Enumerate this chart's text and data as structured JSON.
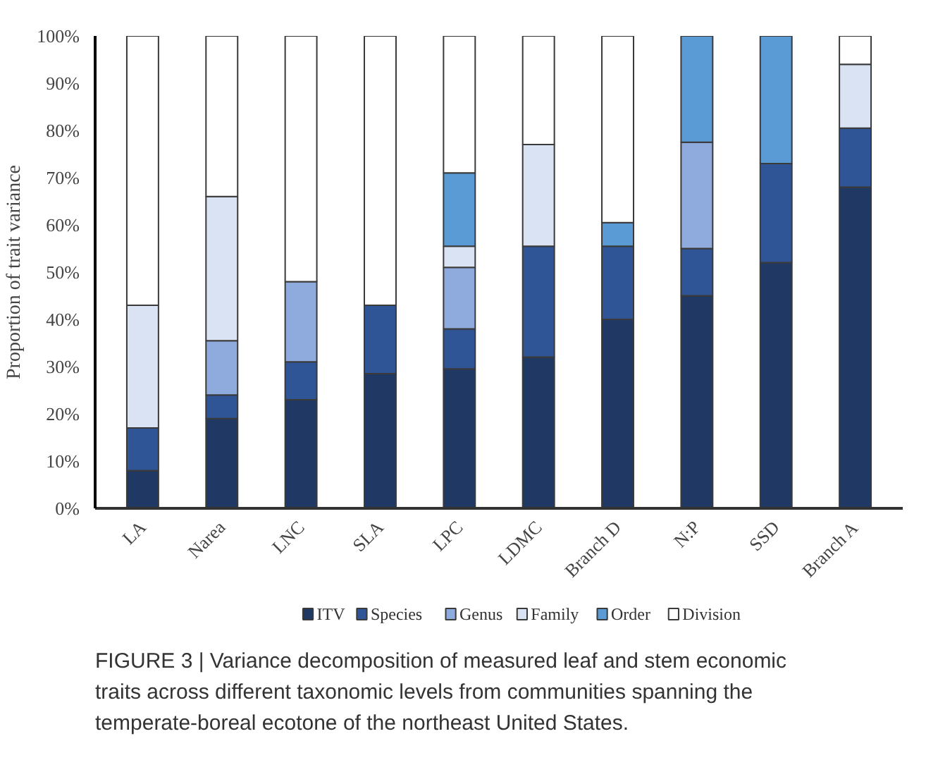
{
  "chart_data": {
    "type": "bar",
    "stacked": true,
    "ylabel": "Proportion of trait variance",
    "categories": [
      "LA",
      "Narea",
      "LNC",
      "SLA",
      "LPC",
      "LDMC",
      "Branch D",
      "N:P",
      "SSD",
      "Branch A"
    ],
    "series": [
      {
        "name": "ITV",
        "color": "#203864",
        "values": [
          8,
          19,
          23,
          28.5,
          29.5,
          32,
          40,
          45,
          52,
          68
        ]
      },
      {
        "name": "Species",
        "color": "#2f5597",
        "values": [
          9,
          5,
          8,
          14.5,
          8.5,
          23.5,
          15.5,
          10,
          21,
          12.5
        ]
      },
      {
        "name": "Genus",
        "color": "#8faadc",
        "values": [
          null,
          11.5,
          17,
          null,
          13,
          null,
          null,
          22.5,
          null,
          null
        ]
      },
      {
        "name": "Family",
        "color": "#dae3f3",
        "values": [
          26,
          30.5,
          null,
          null,
          4.5,
          21.5,
          null,
          null,
          null,
          13.5
        ]
      },
      {
        "name": "Order",
        "color": "#5b9bd5",
        "values": [
          null,
          null,
          null,
          null,
          15.5,
          null,
          5,
          22.5,
          27,
          null
        ]
      },
      {
        "name": "Division",
        "color": "#ffffff",
        "values": [
          57,
          34,
          52,
          57,
          29,
          23,
          39.5,
          null,
          null,
          6
        ]
      }
    ],
    "ylim": [
      0,
      100
    ],
    "yticks": [
      {
        "value": 0,
        "label": "0%"
      },
      {
        "value": 10,
        "label": "10%"
      },
      {
        "value": 20,
        "label": "20%"
      },
      {
        "value": 30,
        "label": "30%"
      },
      {
        "value": 40,
        "label": "40%"
      },
      {
        "value": 50,
        "label": "50%"
      },
      {
        "value": 60,
        "label": "60%"
      },
      {
        "value": 70,
        "label": "70%"
      },
      {
        "value": 80,
        "label": "80%"
      },
      {
        "value": 90,
        "label": "90%"
      },
      {
        "value": 100,
        "label": "100%"
      }
    ],
    "grid": false,
    "legend": "bottom",
    "annotations": [
      "FIGURE 3 | Variance decomposition of measured leaf and stem economic traits across different taxonomic levels from communities spanning the temperate-boreal ecotone of the northeast United States."
    ]
  }
}
